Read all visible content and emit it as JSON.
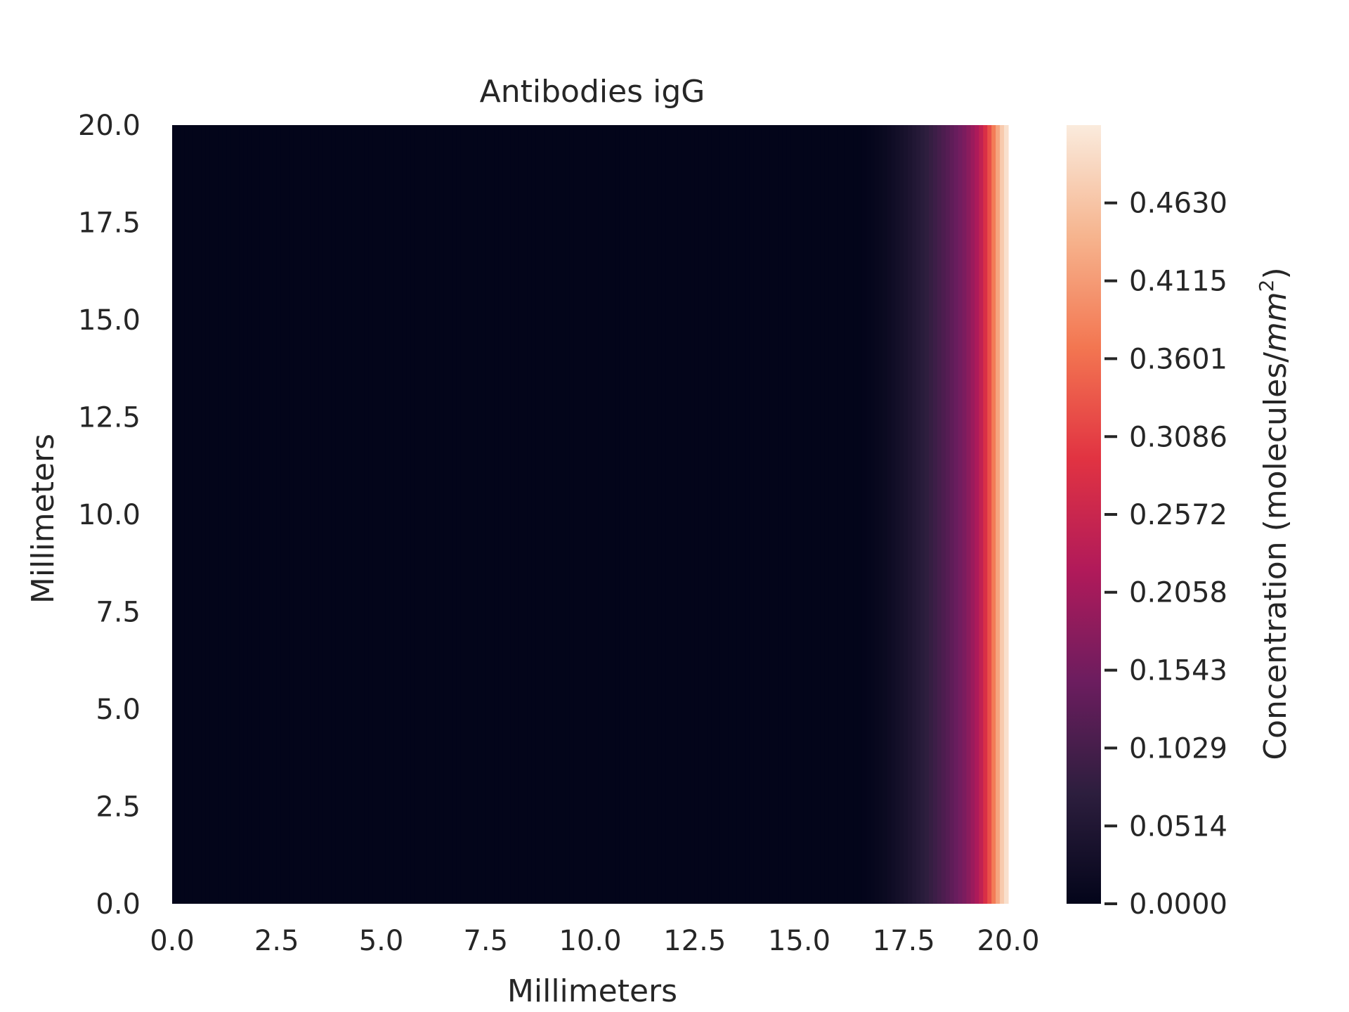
{
  "chart_data": {
    "type": "heatmap",
    "title": "Antibodies igG",
    "xlabel": "Millimeters",
    "ylabel": "Millimeters",
    "colorbar_label": "Concentration (molecules/",
    "colorbar_label_unit": "mm",
    "colorbar_label_exp": "2",
    "colorbar_label_close": ")",
    "xlim": [
      0,
      20
    ],
    "ylim": [
      0,
      20
    ],
    "x_ticks": [
      "0.0",
      "2.5",
      "5.0",
      "7.5",
      "10.0",
      "12.5",
      "15.0",
      "17.5",
      "20.0"
    ],
    "y_ticks": [
      "0.0",
      "2.5",
      "5.0",
      "7.5",
      "10.0",
      "12.5",
      "15.0",
      "17.5",
      "20.0"
    ],
    "colorbar_ticks": [
      "0.0000",
      "0.0514",
      "0.1029",
      "0.1543",
      "0.2058",
      "0.2572",
      "0.3086",
      "0.3601",
      "0.4115",
      "0.4630"
    ],
    "colorbar_range": [
      0,
      0.5144
    ],
    "colormap": [
      "#03051a",
      "#2d1e3e",
      "#6c1d5f",
      "#b11a5a",
      "#e13342",
      "#f37651",
      "#f6b48e",
      "#faebdd"
    ],
    "profile": {
      "x": [
        0,
        16.5,
        17.0,
        17.5,
        18.0,
        18.5,
        19.0,
        19.3,
        19.5,
        19.7,
        19.85,
        20.0
      ],
      "values": [
        0.0,
        0.0,
        0.012,
        0.035,
        0.07,
        0.115,
        0.17,
        0.225,
        0.3,
        0.4,
        0.47,
        0.5144
      ]
    }
  }
}
